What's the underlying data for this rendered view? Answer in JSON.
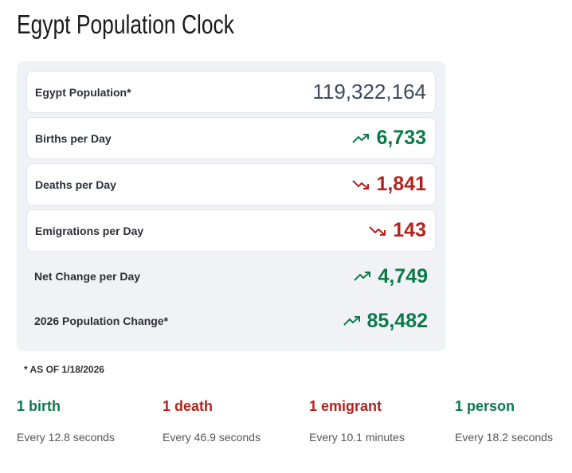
{
  "title": "Egypt Population Clock",
  "stats": [
    {
      "label": "Egypt Population*",
      "value": "119,322,164",
      "trend": "none",
      "icon": "none"
    },
    {
      "label": "Births per Day",
      "value": "6,733",
      "trend": "up",
      "icon": "trending-up-icon"
    },
    {
      "label": "Deaths per Day",
      "value": "1,841",
      "trend": "down",
      "icon": "trending-down-icon"
    },
    {
      "label": "Emigrations per Day",
      "value": "143",
      "trend": "down",
      "icon": "trending-down-icon"
    },
    {
      "label": "Net Change per Day",
      "value": "4,749",
      "trend": "up",
      "icon": "trending-up-icon"
    },
    {
      "label": "2026 Population Change*",
      "value": "85,482",
      "trend": "up",
      "icon": "trending-up-icon"
    }
  ],
  "footnote": "* AS OF 1/18/2026",
  "rates": [
    {
      "label": "1 birth",
      "every": "Every 12.8 seconds"
    },
    {
      "label": "1 death",
      "every": "Every 46.9 seconds"
    },
    {
      "label": "1 emigrant",
      "every": "Every 10.1 minutes"
    },
    {
      "label": "1 person",
      "every": "Every 18.2 seconds"
    }
  ],
  "colors": {
    "up": "#0b7a4b",
    "down": "#b2231c",
    "neutral": "#3d4a5c",
    "panel": "#f1f2f5"
  }
}
